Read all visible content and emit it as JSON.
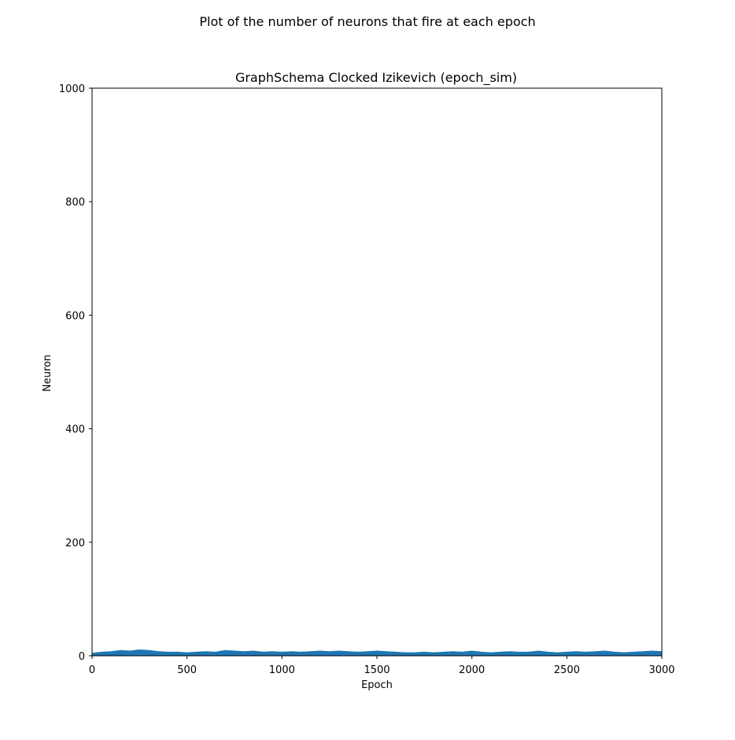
{
  "chart_data": {
    "type": "line",
    "suptitle": "Plot of the number of neurons that fire at each epoch",
    "title": "GraphSchema Clocked Izikevich (epoch_sim)",
    "xlabel": "Epoch",
    "ylabel": "Neuron",
    "xlim": [
      0,
      3000
    ],
    "ylim": [
      0,
      1000
    ],
    "x_ticks": [
      0,
      500,
      1000,
      1500,
      2000,
      2500,
      3000
    ],
    "x_tick_labels": [
      "0",
      "500",
      "1000",
      "1500",
      "2000",
      "2500",
      "3000"
    ],
    "y_ticks": [
      0,
      200,
      400,
      600,
      800,
      1000
    ],
    "y_tick_labels": [
      "0",
      "200",
      "400",
      "600",
      "800",
      "1000"
    ],
    "grid": false,
    "series": [
      {
        "color": "#1f77b4",
        "x": [
          0,
          50,
          100,
          150,
          200,
          250,
          300,
          350,
          400,
          450,
          500,
          550,
          600,
          650,
          700,
          750,
          800,
          850,
          900,
          950,
          1000,
          1050,
          1100,
          1150,
          1200,
          1250,
          1300,
          1350,
          1400,
          1450,
          1500,
          1550,
          1600,
          1650,
          1700,
          1750,
          1800,
          1850,
          1900,
          1950,
          2000,
          2050,
          2100,
          2150,
          2200,
          2250,
          2300,
          2350,
          2400,
          2450,
          2500,
          2550,
          2600,
          2650,
          2700,
          2750,
          2800,
          2850,
          2900,
          2950,
          3000
        ],
        "values": [
          4,
          6,
          7,
          9,
          8,
          10,
          9,
          7,
          6,
          6,
          5,
          6,
          7,
          6,
          9,
          8,
          7,
          8,
          6,
          7,
          6,
          7,
          6,
          7,
          8,
          7,
          8,
          7,
          6,
          7,
          8,
          7,
          6,
          5,
          5,
          6,
          5,
          6,
          7,
          6,
          8,
          6,
          5,
          6,
          7,
          6,
          6,
          8,
          6,
          5,
          6,
          7,
          6,
          7,
          8,
          6,
          5,
          6,
          7,
          8,
          7
        ]
      }
    ]
  }
}
